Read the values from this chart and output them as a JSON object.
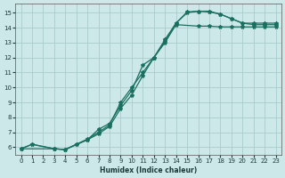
{
  "xlabel": "Humidex (Indice chaleur)",
  "bg_color": "#cce8e8",
  "grid_color": "#aacccc",
  "line_color": "#1a7060",
  "xlim": [
    -0.5,
    23.5
  ],
  "ylim": [
    5.5,
    15.6
  ],
  "xticks": [
    0,
    1,
    2,
    3,
    4,
    5,
    6,
    7,
    8,
    9,
    10,
    11,
    12,
    13,
    14,
    15,
    16,
    17,
    18,
    19,
    20,
    21,
    22,
    23
  ],
  "yticks": [
    6,
    7,
    8,
    9,
    10,
    11,
    12,
    13,
    14,
    15
  ],
  "line1_x": [
    0,
    1,
    3,
    4,
    6,
    7,
    8,
    9,
    10,
    11,
    12,
    13,
    14,
    15,
    16,
    17,
    18,
    19,
    20,
    21,
    22,
    23
  ],
  "line1_y": [
    5.9,
    6.2,
    5.9,
    5.85,
    6.5,
    6.9,
    7.4,
    8.6,
    9.5,
    10.8,
    12.0,
    13.1,
    14.3,
    15.05,
    15.1,
    15.05,
    14.9,
    14.6,
    14.3,
    14.3,
    14.3,
    14.3
  ],
  "line2_x": [
    0,
    3,
    4,
    5,
    6,
    7,
    8,
    9,
    10,
    11,
    12,
    13,
    14,
    15,
    16,
    17,
    18,
    19,
    20,
    21,
    22,
    23
  ],
  "line2_y": [
    5.9,
    5.9,
    5.85,
    6.2,
    6.5,
    7.2,
    7.6,
    8.8,
    9.8,
    11.5,
    12.0,
    13.2,
    14.3,
    15.0,
    15.1,
    15.1,
    14.9,
    14.6,
    14.3,
    14.2,
    14.2,
    14.2
  ],
  "line3_x": [
    0,
    1,
    3,
    4,
    5,
    6,
    7,
    8,
    9,
    10,
    11,
    12,
    13,
    14,
    16,
    17,
    18,
    19,
    20,
    21,
    22,
    23
  ],
  "line3_y": [
    5.9,
    6.2,
    5.9,
    5.85,
    6.2,
    6.55,
    7.0,
    7.5,
    9.0,
    10.0,
    11.0,
    12.0,
    13.0,
    14.2,
    14.1,
    14.1,
    14.05,
    14.05,
    14.05,
    14.05,
    14.05,
    14.05
  ]
}
